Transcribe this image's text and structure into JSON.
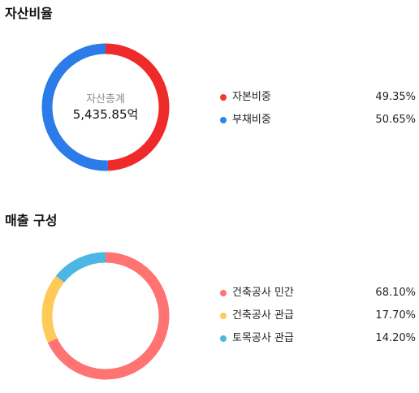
{
  "sections": {
    "asset": {
      "title": "자산비율"
    },
    "sales": {
      "title": "매출 구성"
    }
  },
  "chart_data": [
    {
      "type": "pie",
      "style": "donut",
      "center_label": "자산총계",
      "center_value": "5,435.85억",
      "legend_position": "right",
      "slices": [
        {
          "label": "자본비중",
          "value": 49.35,
          "display": "49.35%",
          "color": "#ee2a2a",
          "dot_color": "#ee3b2b"
        },
        {
          "label": "부채비중",
          "value": 50.65,
          "display": "50.65%",
          "color": "#2b7be8",
          "dot_color": "#2b86e8"
        }
      ]
    },
    {
      "type": "pie",
      "style": "donut",
      "legend_position": "right",
      "slices": [
        {
          "label": "건축공사 민간",
          "value": 68.1,
          "display": "68.10%",
          "color": "#ff7373",
          "dot_color": "#ff7373"
        },
        {
          "label": "건축공사 관급",
          "value": 17.7,
          "display": "17.70%",
          "color": "#ffca57",
          "dot_color": "#ffca57"
        },
        {
          "label": "토목공사 관급",
          "value": 14.2,
          "display": "14.20%",
          "color": "#4bb7e2",
          "dot_color": "#4bb7e2"
        }
      ]
    }
  ]
}
